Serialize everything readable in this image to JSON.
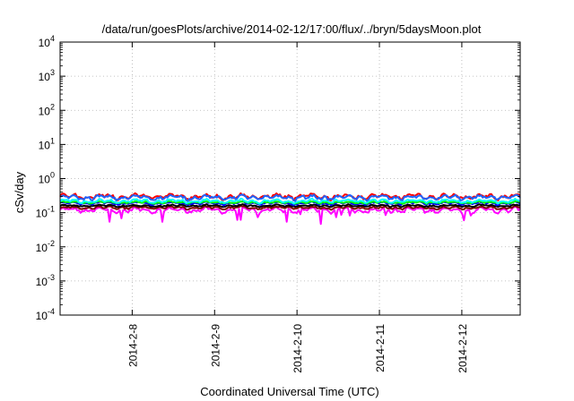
{
  "chart_data": {
    "type": "line",
    "title": "/data/run/goesPlots/archive/2014-02-12/17:00/flux/../bryn/5daysMoon.plot",
    "xlabel": "Coordinated Universal Time (UTC)",
    "ylabel": "cSv/day",
    "yscale": "log",
    "ylim": [
      0.0001,
      10000
    ],
    "yticks": [
      {
        "base": "10",
        "exp": "-4",
        "value": 0.0001
      },
      {
        "base": "10",
        "exp": "-3",
        "value": 0.001
      },
      {
        "base": "10",
        "exp": "-2",
        "value": 0.01
      },
      {
        "base": "10",
        "exp": "-1",
        "value": 0.1
      },
      {
        "base": "10",
        "exp": "0",
        "value": 1
      },
      {
        "base": "10",
        "exp": "1",
        "value": 10
      },
      {
        "base": "10",
        "exp": "2",
        "value": 100
      },
      {
        "base": "10",
        "exp": "3",
        "value": 1000
      },
      {
        "base": "10",
        "exp": "4",
        "value": 10000
      }
    ],
    "xlim": [
      "2014-02-07 03:00",
      "2014-02-12 17:00"
    ],
    "xticks": [
      {
        "label": "2014-2-8",
        "date": "2014-02-08 00:00"
      },
      {
        "label": "2014-2-9",
        "date": "2014-02-09 00:00"
      },
      {
        "label": "2014-2-10",
        "date": "2014-02-10 00:00"
      },
      {
        "label": "2014-2-11",
        "date": "2014-02-11 00:00"
      },
      {
        "label": "2014-2-12",
        "date": "2014-02-12 00:00"
      }
    ],
    "grid": true,
    "legend": "none",
    "series": [
      {
        "color": "#ff00ff",
        "level": 0.12,
        "amp": 0.18,
        "dips": true
      },
      {
        "color": "#800000",
        "level": 0.14,
        "amp": 0.1
      },
      {
        "color": "#000000",
        "level": 0.16,
        "amp": 0.08
      },
      {
        "color": "#0000ff",
        "level": 0.19,
        "amp": 0.1
      },
      {
        "color": "#00ff00",
        "level": 0.2,
        "amp": 0.08
      },
      {
        "color": "#00ffff",
        "level": 0.22,
        "amp": 0.12
      },
      {
        "color": "#ff0000",
        "level": 0.3,
        "amp": 0.18
      },
      {
        "color": "#1e64ff",
        "level": 0.28,
        "amp": 0.16
      }
    ]
  }
}
